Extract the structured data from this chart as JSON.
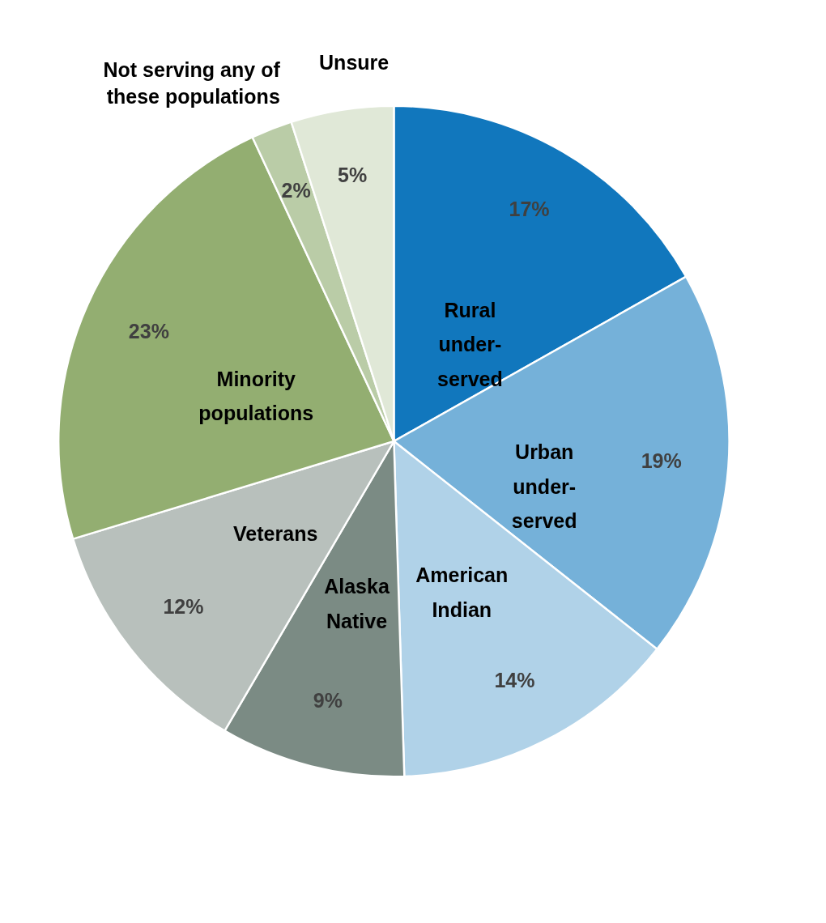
{
  "chart_data": {
    "type": "pie",
    "categories": [
      "Rural under-served",
      "Urban under-served",
      "American Indian",
      "Alaska Native",
      "Veterans",
      "Minority populations",
      "Not serving any of these populations",
      "Unsure"
    ],
    "values": [
      17,
      19,
      14,
      9,
      12,
      23,
      2,
      5
    ],
    "value_labels": [
      "17%",
      "19%",
      "14%",
      "9%",
      "12%",
      "23%",
      "2%",
      "5%"
    ],
    "colors": [
      "#1177bd",
      "#75b1d9",
      "#b0d2e8",
      "#7b8b84",
      "#b8c0bc",
      "#93ae71",
      "#bacca7",
      "#e0e8d7"
    ],
    "legend": false
  }
}
